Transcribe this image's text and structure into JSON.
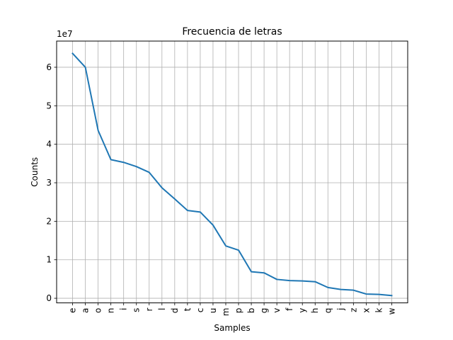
{
  "chart_data": {
    "type": "line",
    "title": "Frecuencia de letras",
    "xlabel": "Samples",
    "ylabel": "Counts",
    "offset_label": "1e7",
    "grid": true,
    "ylim": [
      -1200000,
      66800000
    ],
    "yticks": [
      0,
      10000000,
      20000000,
      30000000,
      40000000,
      50000000,
      60000000
    ],
    "ytick_labels": [
      "0",
      "1",
      "2",
      "3",
      "4",
      "5",
      "6"
    ],
    "categories": [
      "e",
      "a",
      "o",
      "n",
      "i",
      "s",
      "r",
      "l",
      "d",
      "t",
      "c",
      "u",
      "m",
      "p",
      "b",
      "g",
      "v",
      "f",
      "y",
      "h",
      "q",
      "j",
      "z",
      "x",
      "k",
      "w"
    ],
    "series": [
      {
        "color": "#1f77b4",
        "values": [
          63600000,
          60000000,
          43600000,
          36000000,
          35300000,
          34200000,
          32700000,
          28700000,
          25800000,
          22800000,
          22400000,
          19000000,
          13600000,
          12500000,
          6900000,
          6600000,
          4900000,
          4600000,
          4500000,
          4300000,
          2800000,
          2300000,
          2100000,
          1100000,
          1000000,
          700000
        ]
      }
    ],
    "grid_color": "#b0b0b0"
  }
}
